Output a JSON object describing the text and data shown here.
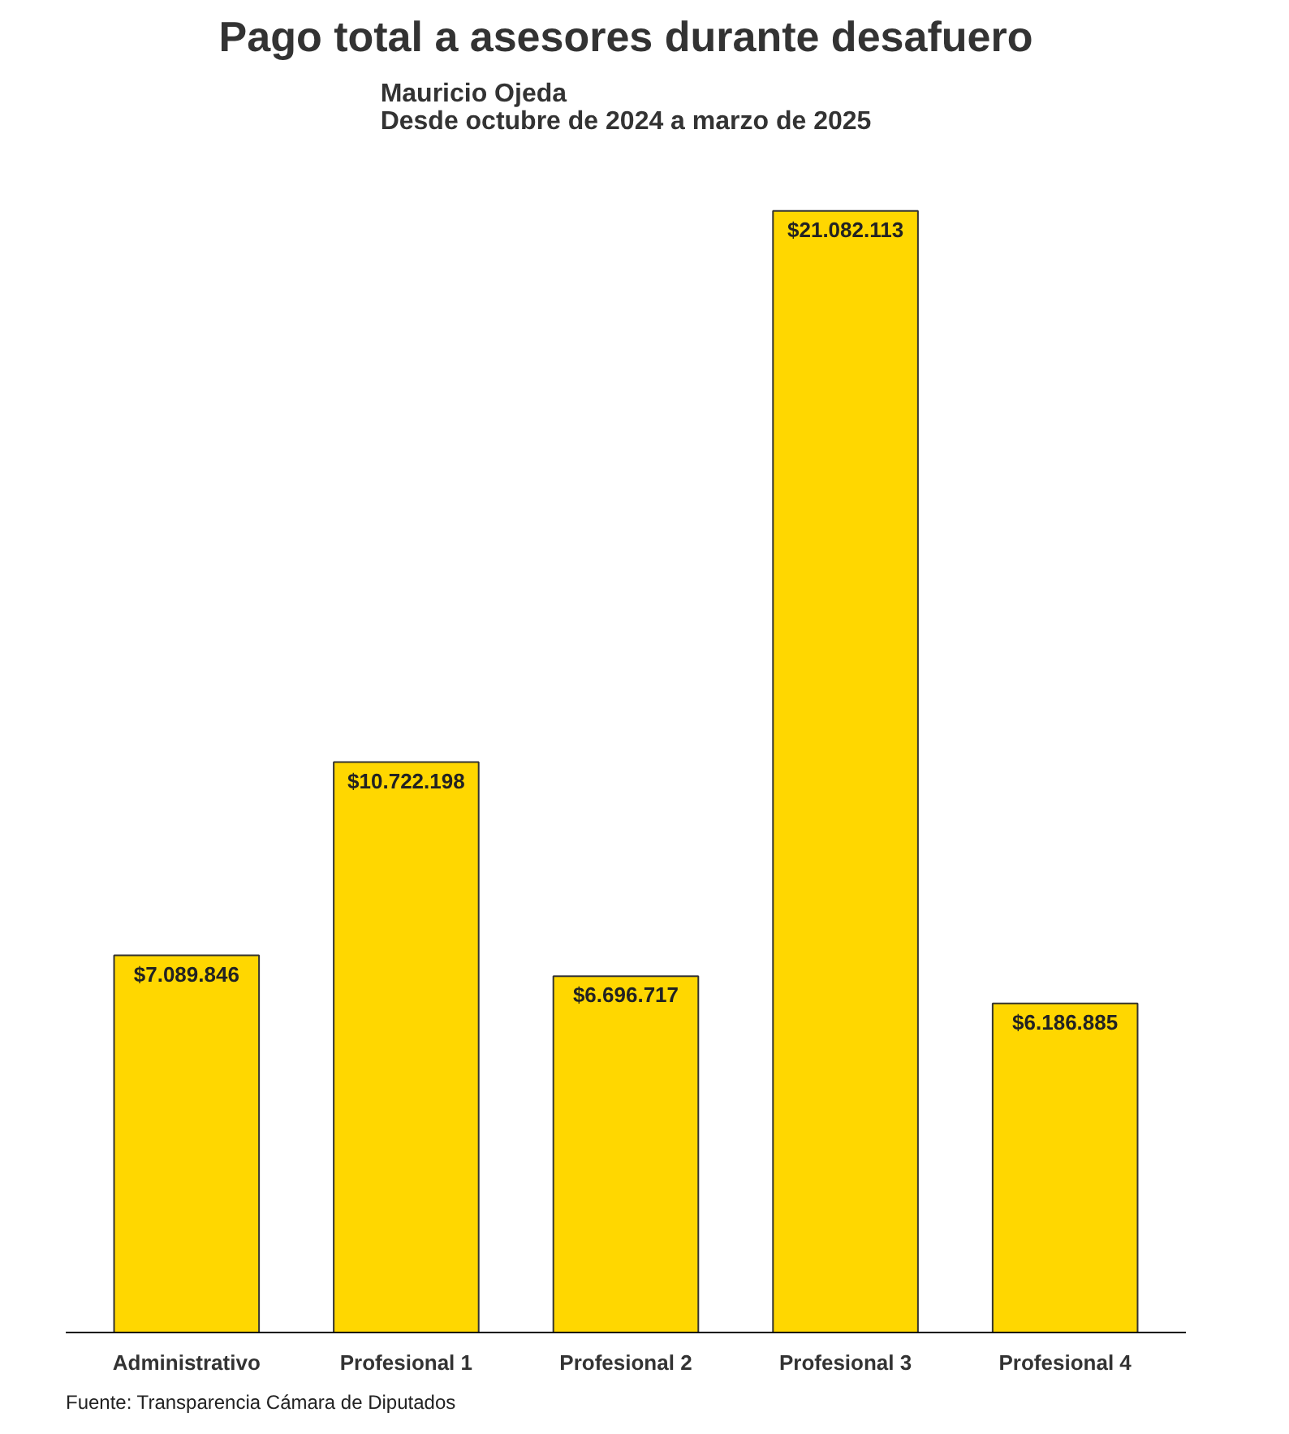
{
  "chart_data": {
    "type": "bar",
    "title": "Pago total a asesores durante desafuero",
    "subtitle": "Mauricio Ojeda\nDesde octubre de 2024 a marzo de 2025",
    "categories": [
      "Administrativo",
      "Profesional 1",
      "Profesional 2",
      "Profesional 3",
      "Profesional 4"
    ],
    "values": [
      7089846,
      10722198,
      6696717,
      21082113,
      6186885
    ],
    "value_labels": [
      "$7.089.846",
      "$10.722.198",
      "$6.696.717",
      "$21.082.113",
      "$6.186.885"
    ],
    "color": "#ffd700",
    "relative": false,
    "grid": false,
    "annotations": [
      "Fuente: Transparencia Cámara de Diputados"
    ]
  }
}
